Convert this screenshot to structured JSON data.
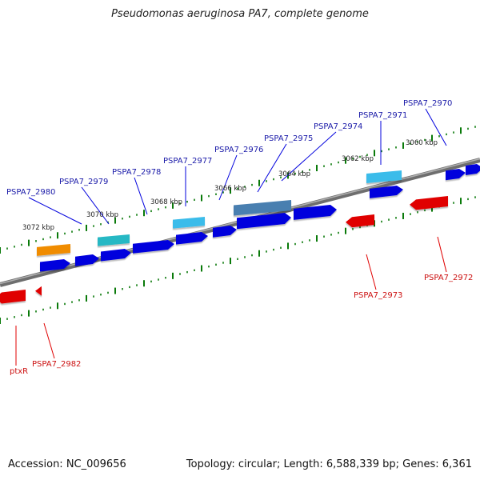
{
  "title": "Pseudomonas aeruginosa PA7, complete genome",
  "footer": {
    "accession": "Accession: NC_009656",
    "summary": "Topology: circular; Length: 6,588,339 bp; Genes: 6,361"
  },
  "colors": {
    "forward_gene": "#0000dd",
    "reverse_gene": "#e00000",
    "forward_label": "#1a1aa8",
    "reverse_label": "#cc1111",
    "tick": "#0a7a0a",
    "backbone": "#808080",
    "orange": "#f08c00",
    "teal": "#27b8c4",
    "cyan": "#3bbcea",
    "steel": "#4a7fb0"
  },
  "scale_labels": [
    "3072 kbp",
    "3070 kbp",
    "3068 kbp",
    "3066 kbp",
    "3064 kbp",
    "3062 kbp",
    "3060 kbp"
  ],
  "gene_labels_forward": [
    "PSPA7_2980",
    "PSPA7_2979",
    "PSPA7_2978",
    "PSPA7_2977",
    "PSPA7_2976",
    "PSPA7_2975",
    "PSPA7_2974",
    "PSPA7_2971",
    "PSPA7_2970"
  ],
  "gene_labels_reverse": [
    "PSPA7_2973",
    "PSPA7_2972",
    "PSPA7_2982",
    "ptxR"
  ]
}
